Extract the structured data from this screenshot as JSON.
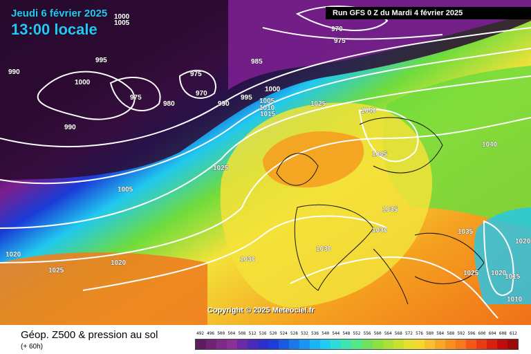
{
  "header": {
    "valid_date": "Jeudi 6 février 2025",
    "valid_time": "13:00 locale",
    "run_info": "Run GFS 0 Z du Mardi 4 février 2025"
  },
  "copyright": "Copyright © 2025 Meteociel.fr",
  "footer": {
    "product": "Géop. Z500 & pression au sol",
    "lead_time": "(+ 60h)"
  },
  "colors": {
    "low": "#1a0a1e",
    "purple": "#7a1f8f",
    "blue": "#1a3bd6",
    "cyan": "#20c8f0",
    "green": "#6fdc3c",
    "yellow": "#f3e23a",
    "orange": "#f5a020",
    "contour": "#ffffff"
  },
  "scale": {
    "labels": [
      "492",
      "496",
      "500",
      "504",
      "508",
      "512",
      "516",
      "520",
      "524",
      "528",
      "532",
      "536",
      "540",
      "544",
      "548",
      "552",
      "556",
      "560",
      "564",
      "568",
      "572",
      "576",
      "580",
      "584",
      "588",
      "592",
      "596",
      "600",
      "604",
      "608",
      "612"
    ],
    "colors": [
      "#5a1e5e",
      "#6e2373",
      "#7f2a88",
      "#8c2f99",
      "#6a2aa8",
      "#4a2ab8",
      "#2e2ec8",
      "#1f3cd8",
      "#1a5ae0",
      "#1a78e8",
      "#1a96f0",
      "#1cb4f4",
      "#20ccf4",
      "#30dcd8",
      "#40e4b0",
      "#55e888",
      "#6fe060",
      "#8ce040",
      "#aae038",
      "#c8e030",
      "#e4e030",
      "#f4d830",
      "#f8c030",
      "#f8a828",
      "#f89020",
      "#f87820",
      "#f45818",
      "#e83a14",
      "#d82010",
      "#c00c0c",
      "#9c0a0a"
    ]
  },
  "isobar_labels": [
    "1000",
    "1005",
    "990",
    "995",
    "975",
    "970",
    "980",
    "985",
    "990",
    "975",
    "1000",
    "1005",
    "1010",
    "1015",
    "1025",
    "1040",
    "1045",
    "1035",
    "1030",
    "1030",
    "1035",
    "1020",
    "1025",
    "1025",
    "1020",
    "1015",
    "1010",
    "1040",
    "1020",
    "1005",
    "1025",
    "1020",
    "1030",
    "990",
    "970",
    "975",
    "995",
    "1000"
  ]
}
